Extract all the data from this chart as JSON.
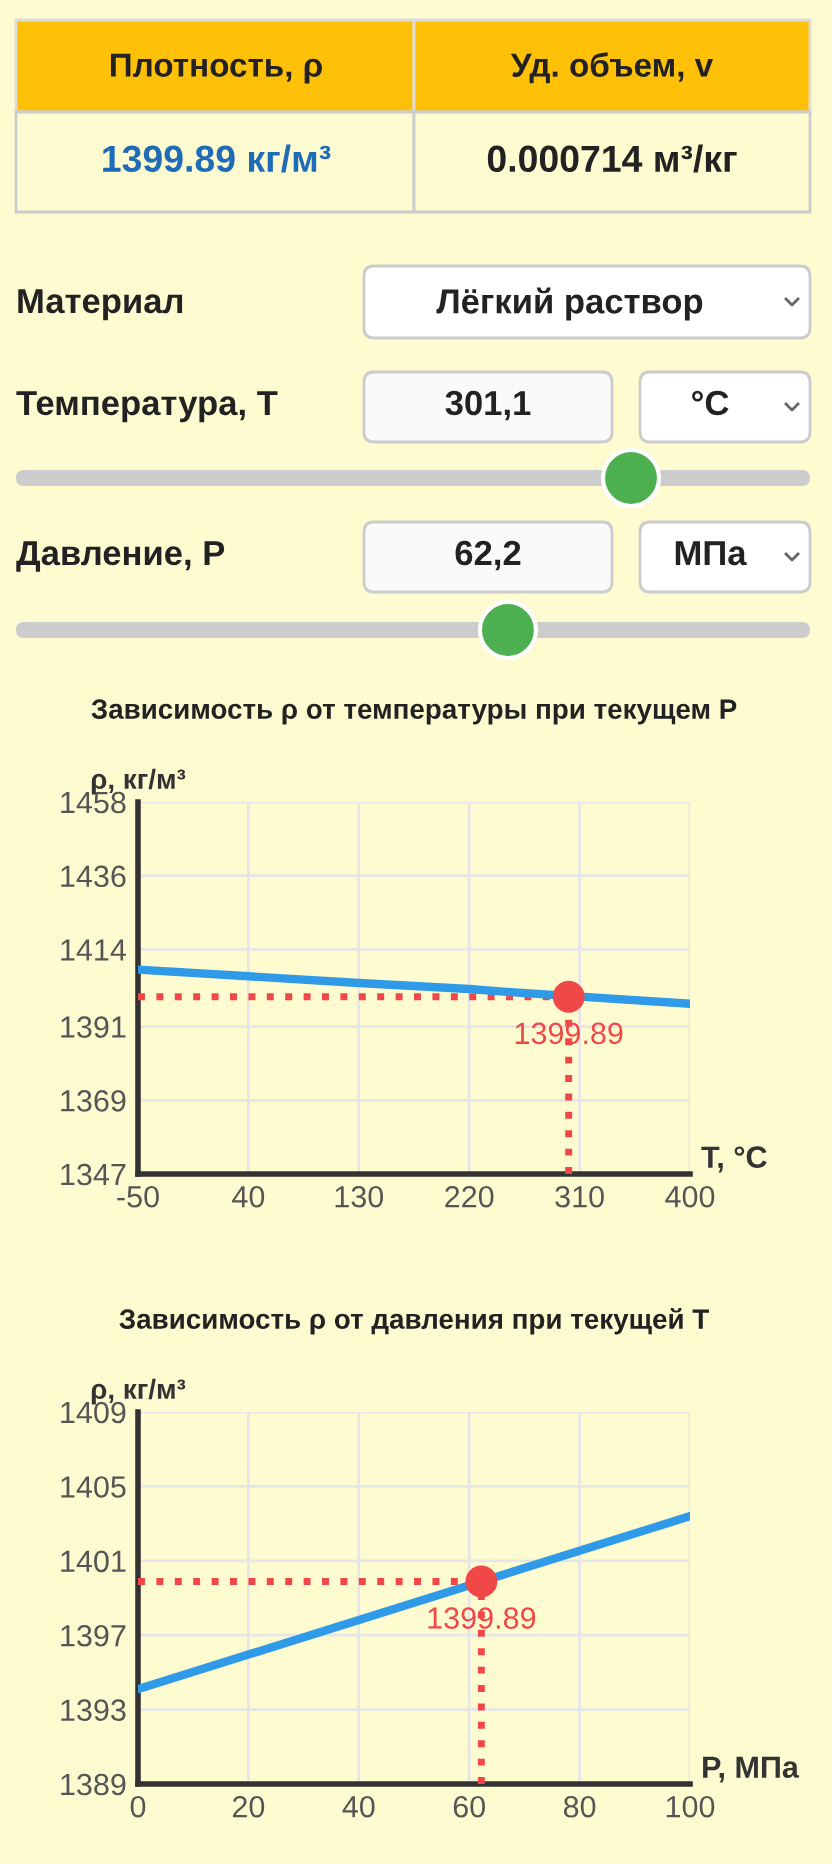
{
  "chart_data": [
    {
      "type": "other",
      "annotations": [
        "Плотность, ρ",
        "Уд. объем, v",
        "1399.89 кг/м³",
        "0.000714 м³/кг",
        "Материал",
        "Лёгкий раствор",
        "Температура, T",
        "301,1",
        "°C",
        "Давление, P",
        "62,2",
        "МПа"
      ]
    },
    {
      "type": "line",
      "title": "Зависимость ρ от температуры при текущем P",
      "xlabel": "T, °C",
      "ylabel": "ρ, кг/м³",
      "xlim": [
        -50,
        400
      ],
      "xticks": [
        -50,
        40,
        130,
        220,
        310,
        400
      ],
      "ylim": [
        1347,
        1458
      ],
      "yticks": [
        1347,
        1369,
        1391,
        1414,
        1436,
        1458
      ],
      "grid": true,
      "series": [
        {
          "type": "line",
          "color": "#2f9be8",
          "x": [
            -50,
            40,
            130,
            220,
            260,
            400
          ],
          "values": [
            1408,
            1406,
            1404,
            1402.2,
            1401.1,
            1397.8
          ]
        },
        {
          "type": "scatter",
          "color": "#f04848",
          "marker": "circle",
          "x": [
            301.1
          ],
          "values": [
            1399.89
          ],
          "value_labels": [
            "1399.89"
          ]
        }
      ],
      "ref_lines": [
        {
          "axis": "x",
          "value": 301.1,
          "color": "#f04848",
          "line_style": "dotted"
        },
        {
          "axis": "y",
          "value": 1399.89,
          "color": "#f04848",
          "line_style": "dotted"
        }
      ]
    },
    {
      "type": "line",
      "title": "Зависимость ρ от давления при текущей T",
      "xlabel": "P, МПа",
      "ylabel": "ρ, кг/м³",
      "xlim": [
        0,
        100
      ],
      "xticks": [
        0,
        20,
        40,
        60,
        80,
        100
      ],
      "ylim": [
        1389,
        1409
      ],
      "yticks": [
        1389,
        1393,
        1397,
        1401,
        1405,
        1409
      ],
      "grid": true,
      "series": [
        {
          "type": "line",
          "color": "#2f9be8",
          "x": [
            0,
            100
          ],
          "values": [
            1394.1,
            1403.4
          ]
        },
        {
          "type": "scatter",
          "color": "#f04848",
          "marker": "circle",
          "x": [
            62.2
          ],
          "values": [
            1399.89
          ],
          "value_labels": [
            "1399.89"
          ]
        }
      ],
      "ref_lines": [
        {
          "axis": "x",
          "value": 62.2,
          "color": "#f04848",
          "line_style": "dotted"
        },
        {
          "axis": "y",
          "value": 1399.89,
          "color": "#f04848",
          "line_style": "dotted"
        }
      ]
    }
  ]
}
